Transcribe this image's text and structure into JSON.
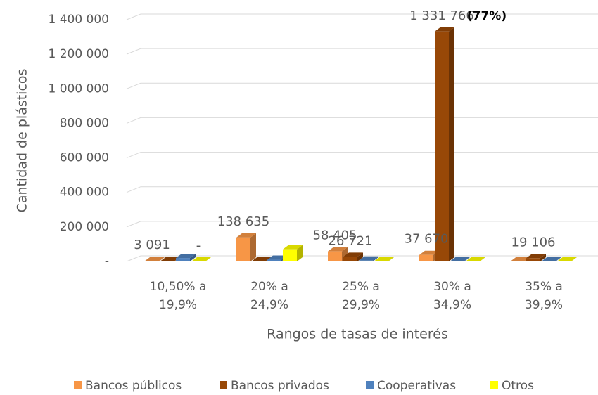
{
  "chart_data": {
    "type": "bar3d",
    "y_label": "Cantidad de plásticos",
    "x_label": "Rangos de tasas de interés",
    "categories": [
      "10,50% a\n19,9%",
      "20% a\n24,9%",
      "25% a\n29,9%",
      "30% a\n34,9%",
      "35% a\n39,9%"
    ],
    "series": [
      {
        "name": "Bancos públicos",
        "color": "#f79646",
        "values": [
          3091,
          138635,
          58405,
          37670,
          2000
        ],
        "value_labels": [
          "3 091",
          "138 635",
          "58 405",
          "37 670",
          null
        ]
      },
      {
        "name": "Bancos privados",
        "color": "#984807",
        "values": [
          2000,
          2000,
          26721,
          1331766,
          19106
        ],
        "value_labels": [
          null,
          null,
          "26 721",
          "1 331 766",
          "19 106"
        ]
      },
      {
        "name": "Cooperativas",
        "color": "#4f81bd",
        "values": [
          20000,
          10000,
          5000,
          2000,
          2000
        ]
      },
      {
        "name": "Otros",
        "color": "#ffff00",
        "values": [
          0,
          70000,
          2000,
          1000,
          1000
        ],
        "value_labels": [
          "-",
          null,
          null,
          null,
          null
        ]
      }
    ],
    "annotation": "(77%)",
    "ylim": [
      0,
      1400000
    ],
    "yticks": [
      {
        "value": 0,
        "label": "-"
      },
      {
        "value": 200000,
        "label": "200 000"
      },
      {
        "value": 400000,
        "label": "400 000"
      },
      {
        "value": 600000,
        "label": "600 000"
      },
      {
        "value": 800000,
        "label": "800 000"
      },
      {
        "value": 1000000,
        "label": "1 000 000"
      },
      {
        "value": 1200000,
        "label": "1 200 000"
      },
      {
        "value": 1400000,
        "label": "1 400 000"
      }
    ],
    "grid": true,
    "legend": "bottom"
  }
}
